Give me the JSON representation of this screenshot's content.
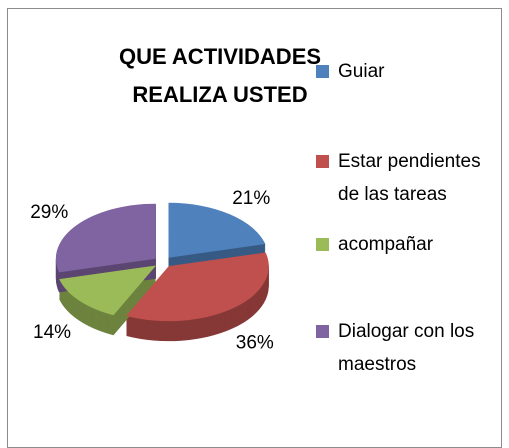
{
  "chart_data": {
    "type": "pie",
    "title": "QUE ACTIVIDADES REALIZA USTED",
    "categories": [
      "Guiar",
      "Estar pendientes de las tareas",
      "acompañar",
      "Dialogar con los maestros"
    ],
    "values": [
      21,
      36,
      14,
      29
    ],
    "value_labels": [
      "21%",
      "36%",
      "14%",
      "29%"
    ],
    "colors": [
      "#4f81bd",
      "#c0504d",
      "#9bbb59",
      "#8064a2"
    ],
    "legend": "right"
  }
}
